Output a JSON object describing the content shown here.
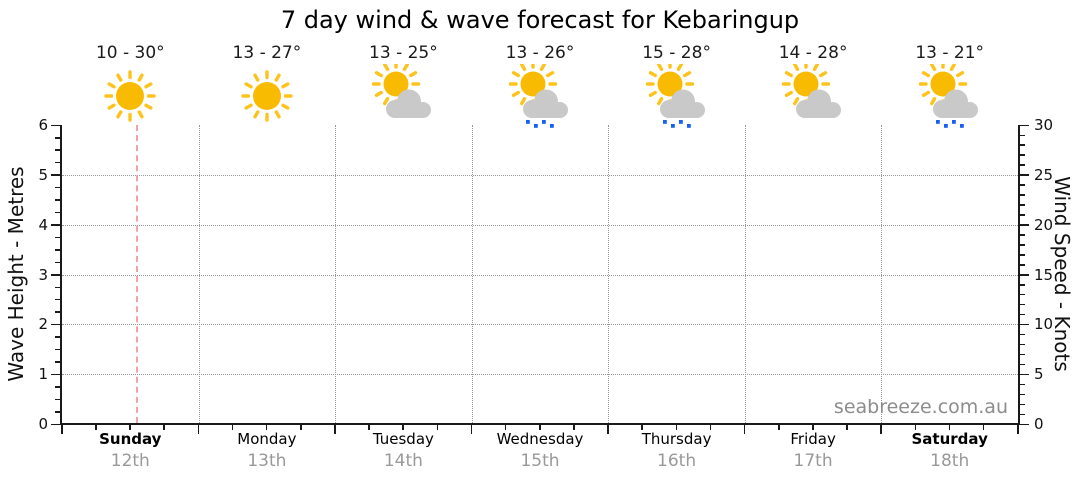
{
  "title": "7 day wind & wave forecast for Kebaringup",
  "watermark": "seabreeze.com.au",
  "colors": {
    "sun_body": "#F9BB02",
    "sun_ray": "#FDC31D",
    "cloud": "#C9C9C9",
    "rain": "#1661F2",
    "now_line": "#F2A3A3",
    "grid": "#999999",
    "axis": "#1A1A1A",
    "date_text": "#999999",
    "watermark_text": "#8C8C8C"
  },
  "chart_data": {
    "type": "line",
    "series": [],
    "left_axis": {
      "label": "Wave Height - Metres",
      "min": 0,
      "max": 6,
      "major_step": 1,
      "minor_step": 0.25
    },
    "right_axis": {
      "label": "Wind Speed - Knots",
      "min": 0,
      "max": 30,
      "major_step": 5,
      "minor_step": 1
    },
    "grid": "on",
    "days": [
      {
        "name": "Sunday",
        "date": "12th",
        "temp": "10 - 30°",
        "icon": "sunny",
        "weekend": true
      },
      {
        "name": "Monday",
        "date": "13th",
        "temp": "13 - 27°",
        "icon": "sunny",
        "weekend": false
      },
      {
        "name": "Tuesday",
        "date": "14th",
        "temp": "13 - 25°",
        "icon": "partly-cloudy",
        "weekend": false
      },
      {
        "name": "Wednesday",
        "date": "15th",
        "temp": "13 - 26°",
        "icon": "partly-cloudy-rain",
        "weekend": false
      },
      {
        "name": "Thursday",
        "date": "16th",
        "temp": "15 - 28°",
        "icon": "partly-cloudy-rain",
        "weekend": false
      },
      {
        "name": "Friday",
        "date": "17th",
        "temp": "14 - 28°",
        "icon": "partly-cloudy",
        "weekend": false
      },
      {
        "name": "Saturday",
        "date": "18th",
        "temp": "13 - 21°",
        "icon": "partly-cloudy-rain",
        "weekend": true
      }
    ],
    "now_line": {
      "day_index": 0,
      "fraction": 0.54
    }
  }
}
